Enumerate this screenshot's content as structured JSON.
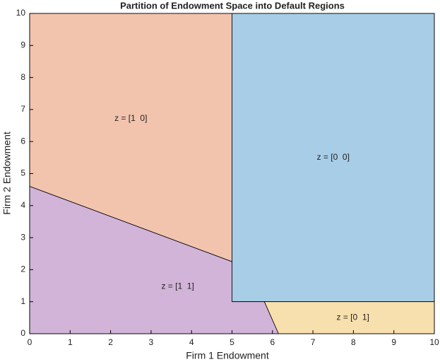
{
  "chart_data": {
    "type": "polygon",
    "title": "Partition of Endowment Space into Default Regions",
    "x_label": "Firm 1 Endowment",
    "y_label": "Firm 2 Endowment",
    "xlim": [
      0,
      10
    ],
    "ylim": [
      0,
      10
    ],
    "xticks": [
      0,
      1,
      2,
      3,
      4,
      5,
      6,
      7,
      8,
      9,
      10
    ],
    "yticks": [
      0,
      1,
      2,
      3,
      4,
      5,
      6,
      7,
      8,
      9,
      10
    ],
    "series": [
      {
        "name": "z = [1  0]",
        "color": "#f2c4ae",
        "x": [
          0,
          5,
          5,
          0
        ],
        "y": [
          10,
          10,
          2.25,
          4.6
        ]
      },
      {
        "name": "z = [0  0]",
        "color": "#a8cde6",
        "x": [
          5,
          10,
          10,
          5
        ],
        "y": [
          10,
          10,
          1,
          1
        ]
      },
      {
        "name": "z = [1  1]",
        "color": "#d1b4d8",
        "x": [
          0,
          6.15,
          5.8,
          5,
          5,
          0
        ],
        "y": [
          0,
          0,
          1,
          1,
          2.25,
          4.6
        ]
      },
      {
        "name": "z = [0  1]",
        "color": "#f8e0ae",
        "x": [
          6.15,
          10,
          10,
          5.8
        ],
        "y": [
          0,
          0,
          1,
          1
        ]
      }
    ]
  }
}
